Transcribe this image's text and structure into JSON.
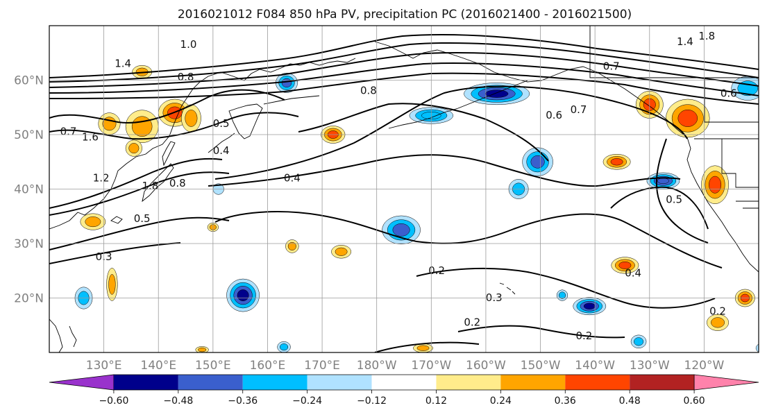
{
  "title": "2016021012 F084 850 hPa PV, precipitation PC (2016021400 - 2016021500)",
  "map": {
    "lon_range_east": [
      120,
      250
    ],
    "lat_range": [
      10,
      70
    ],
    "lon_ticks": [
      130,
      140,
      150,
      160,
      170,
      180,
      190,
      200,
      210,
      220,
      230,
      240
    ],
    "lon_tick_labels": [
      "130°E",
      "140°E",
      "150°E",
      "160°E",
      "170°E",
      "180°W",
      "170°W",
      "160°W",
      "150°W",
      "140°W",
      "130°W",
      "120°W"
    ],
    "lat_ticks": [
      20,
      30,
      40,
      50,
      60
    ],
    "lat_tick_labels": [
      "20°N",
      "30°N",
      "40°N",
      "50°N",
      "60°N"
    ],
    "grid": true
  },
  "colorbar": {
    "levels": [
      -0.6,
      -0.48,
      -0.36,
      -0.24,
      -0.12,
      0.12,
      0.24,
      0.36,
      0.48,
      0.6
    ],
    "labels": [
      "−0.60",
      "−0.48",
      "−0.36",
      "−0.24",
      "−0.12",
      "0.12",
      "0.24",
      "0.36",
      "0.48",
      "0.60"
    ],
    "colors": [
      "#9932cc",
      "#00008b",
      "#3a5fcd",
      "#00bfff",
      "#b0e2ff",
      "#ffffff",
      "#ffec8b",
      "#ffa500",
      "#ff4500",
      "#b22222",
      "#ff82ab"
    ],
    "extend": "both"
  },
  "precip_blobs": [
    {
      "lon": 155.5,
      "lat": 20.5,
      "rx": 3.0,
      "ry": 3.0,
      "value": -0.55
    },
    {
      "lon": 126.3,
      "lat": 20.0,
      "rx": 1.6,
      "ry": 2.0,
      "value": -0.3
    },
    {
      "lon": 184.5,
      "lat": 32.5,
      "rx": 3.5,
      "ry": 2.6,
      "value": -0.45
    },
    {
      "lon": 219.0,
      "lat": 18.5,
      "rx": 3.0,
      "ry": 1.6,
      "value": -0.5
    },
    {
      "lon": 209.5,
      "lat": 45.0,
      "rx": 2.8,
      "ry": 2.6,
      "value": -0.4
    },
    {
      "lon": 206.0,
      "lat": 40.0,
      "rx": 1.8,
      "ry": 1.8,
      "value": -0.3
    },
    {
      "lon": 232.5,
      "lat": 41.5,
      "rx": 3.0,
      "ry": 1.5,
      "value": -0.48
    },
    {
      "lon": 202.0,
      "lat": 57.5,
      "rx": 6.0,
      "ry": 2.0,
      "value": -0.5
    },
    {
      "lon": 190.0,
      "lat": 53.5,
      "rx": 4.0,
      "ry": 1.5,
      "value": -0.36
    },
    {
      "lon": 163.5,
      "lat": 59.5,
      "rx": 2.0,
      "ry": 1.8,
      "value": -0.4
    },
    {
      "lon": 248.0,
      "lat": 58.5,
      "rx": 3.0,
      "ry": 2.2,
      "value": -0.3
    },
    {
      "lon": 214.0,
      "lat": 20.5,
      "rx": 1.0,
      "ry": 1.0,
      "value": -0.25
    },
    {
      "lon": 228.0,
      "lat": 12.0,
      "rx": 1.4,
      "ry": 1.2,
      "value": -0.25
    },
    {
      "lon": 251.0,
      "lat": 10.8,
      "rx": 1.5,
      "ry": 1.0,
      "value": -0.25
    },
    {
      "lon": 151.0,
      "lat": 40.0,
      "rx": 1.0,
      "ry": 1.0,
      "value": -0.2
    },
    {
      "lon": 163.0,
      "lat": 11.0,
      "rx": 1.2,
      "ry": 1.0,
      "value": -0.25
    },
    {
      "lon": 242.0,
      "lat": 40.8,
      "rx": 2.5,
      "ry": 3.5,
      "value": 0.45
    },
    {
      "lon": 237.0,
      "lat": 53.0,
      "rx": 4.0,
      "ry": 3.5,
      "value": 0.45
    },
    {
      "lon": 230.0,
      "lat": 55.5,
      "rx": 2.5,
      "ry": 2.5,
      "value": 0.4
    },
    {
      "lon": 224.0,
      "lat": 45.0,
      "rx": 2.5,
      "ry": 1.4,
      "value": 0.4
    },
    {
      "lon": 172.0,
      "lat": 50.0,
      "rx": 2.2,
      "ry": 1.6,
      "value": 0.4
    },
    {
      "lon": 131.0,
      "lat": 52.0,
      "rx": 2.0,
      "ry": 2.0,
      "value": 0.3
    },
    {
      "lon": 137.0,
      "lat": 51.5,
      "rx": 3.0,
      "ry": 3.0,
      "value": 0.35
    },
    {
      "lon": 143.0,
      "lat": 54.0,
      "rx": 3.0,
      "ry": 2.5,
      "value": 0.36
    },
    {
      "lon": 146.0,
      "lat": 53.0,
      "rx": 1.8,
      "ry": 2.5,
      "value": 0.3
    },
    {
      "lon": 135.5,
      "lat": 47.5,
      "rx": 1.5,
      "ry": 1.5,
      "value": 0.3
    },
    {
      "lon": 137.0,
      "lat": 61.5,
      "rx": 1.8,
      "ry": 1.2,
      "value": 0.3
    },
    {
      "lon": 128.0,
      "lat": 34.0,
      "rx": 2.3,
      "ry": 1.5,
      "value": 0.3
    },
    {
      "lon": 131.5,
      "lat": 22.5,
      "rx": 1.0,
      "ry": 3.0,
      "value": 0.3
    },
    {
      "lon": 164.5,
      "lat": 29.5,
      "rx": 1.2,
      "ry": 1.2,
      "value": 0.3
    },
    {
      "lon": 173.5,
      "lat": 28.5,
      "rx": 1.8,
      "ry": 1.2,
      "value": 0.3
    },
    {
      "lon": 225.5,
      "lat": 26.0,
      "rx": 2.5,
      "ry": 1.5,
      "value": 0.4
    },
    {
      "lon": 247.5,
      "lat": 20.0,
      "rx": 1.8,
      "ry": 1.6,
      "value": 0.45
    },
    {
      "lon": 242.5,
      "lat": 15.5,
      "rx": 2.0,
      "ry": 1.5,
      "value": 0.3
    },
    {
      "lon": 188.5,
      "lat": 10.8,
      "rx": 1.8,
      "ry": 0.8,
      "value": 0.3
    },
    {
      "lon": 148.0,
      "lat": 10.5,
      "rx": 1.2,
      "ry": 0.6,
      "value": 0.25
    },
    {
      "lon": 150.0,
      "lat": 33.0,
      "rx": 1.0,
      "ry": 0.8,
      "value": 0.3
    }
  ],
  "pv_contour_labels": [
    {
      "text": "1.0",
      "lon": 145.5,
      "lat": 66.5
    },
    {
      "text": "1.4",
      "lon": 133.5,
      "lat": 63.0
    },
    {
      "text": "0.8",
      "lon": 145.0,
      "lat": 60.5
    },
    {
      "text": "0.8",
      "lon": 178.5,
      "lat": 58.0
    },
    {
      "text": "0.5",
      "lon": 151.5,
      "lat": 52.0
    },
    {
      "text": "0.4",
      "lon": 151.5,
      "lat": 47.0
    },
    {
      "text": "0.7",
      "lon": 123.5,
      "lat": 50.5
    },
    {
      "text": "1.6",
      "lon": 127.5,
      "lat": 49.5
    },
    {
      "text": "1.2",
      "lon": 129.5,
      "lat": 42.0
    },
    {
      "text": "1.8",
      "lon": 138.5,
      "lat": 40.5
    },
    {
      "text": "0.8",
      "lon": 143.5,
      "lat": 41.0
    },
    {
      "text": "0.4",
      "lon": 164.5,
      "lat": 42.0
    },
    {
      "text": "0.5",
      "lon": 137.0,
      "lat": 34.5
    },
    {
      "text": "0.3",
      "lon": 130.0,
      "lat": 27.5
    },
    {
      "text": "0.6",
      "lon": 212.5,
      "lat": 53.5
    },
    {
      "text": "0.7",
      "lon": 217.0,
      "lat": 54.5
    },
    {
      "text": "0.7",
      "lon": 223.0,
      "lat": 62.5
    },
    {
      "text": "1.4",
      "lon": 236.5,
      "lat": 67.0
    },
    {
      "text": "1.8",
      "lon": 240.5,
      "lat": 68.0
    },
    {
      "text": "0.6",
      "lon": 244.5,
      "lat": 57.5
    },
    {
      "text": "0.5",
      "lon": 234.5,
      "lat": 38.0
    },
    {
      "text": "0.4",
      "lon": 227.0,
      "lat": 24.5
    },
    {
      "text": "0.2",
      "lon": 191.0,
      "lat": 25.0
    },
    {
      "text": "0.2",
      "lon": 197.5,
      "lat": 15.5
    },
    {
      "text": "0.3",
      "lon": 201.5,
      "lat": 20.0
    },
    {
      "text": "0.2",
      "lon": 218.0,
      "lat": 13.0
    },
    {
      "text": "0.2",
      "lon": 242.5,
      "lat": 17.5
    }
  ]
}
